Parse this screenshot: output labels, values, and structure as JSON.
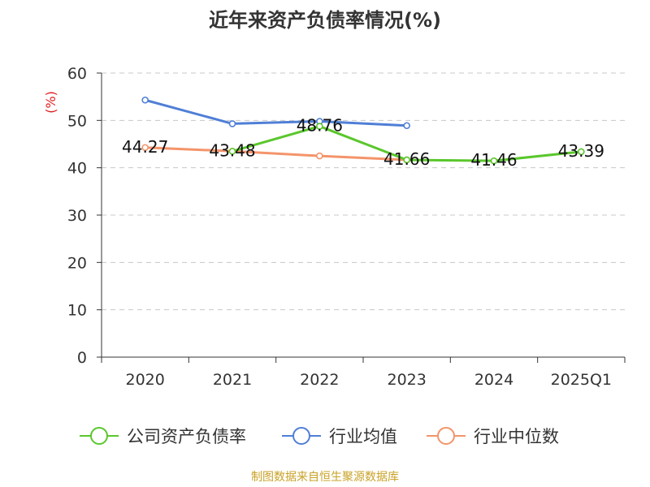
{
  "title": "近年来资产负债率情况(%)",
  "source": "制图数据来自恒生聚源数据库",
  "chart_data": {
    "type": "line",
    "title": "近年来资产负债率情况(%)",
    "ylabel": "(%)",
    "ylim": [
      0,
      60
    ],
    "yticks": [
      0,
      10,
      20,
      30,
      40,
      50,
      60
    ],
    "categories": [
      "2020",
      "2021",
      "2022",
      "2023",
      "2024",
      "2025Q1"
    ],
    "grid": true,
    "legend_position": "bottom",
    "series": [
      {
        "name": "公司资产负债率",
        "color": "#5ac72c",
        "values": [
          null,
          43.48,
          48.76,
          41.66,
          41.46,
          43.39
        ],
        "labels": [
          null,
          "43.48",
          "48.76",
          "41.66",
          "41.46",
          "43.39"
        ]
      },
      {
        "name": "行业均值",
        "color": "#4f7fd6",
        "values": [
          54.3,
          49.3,
          49.8,
          48.9,
          null,
          null
        ],
        "labels": [
          null,
          null,
          null,
          null,
          null,
          null
        ]
      },
      {
        "name": "行业中位数",
        "color": "#f4946a",
        "values": [
          44.27,
          43.5,
          42.5,
          41.66,
          null,
          null
        ],
        "labels": [
          "44.27",
          null,
          null,
          null,
          null,
          null
        ]
      }
    ]
  }
}
